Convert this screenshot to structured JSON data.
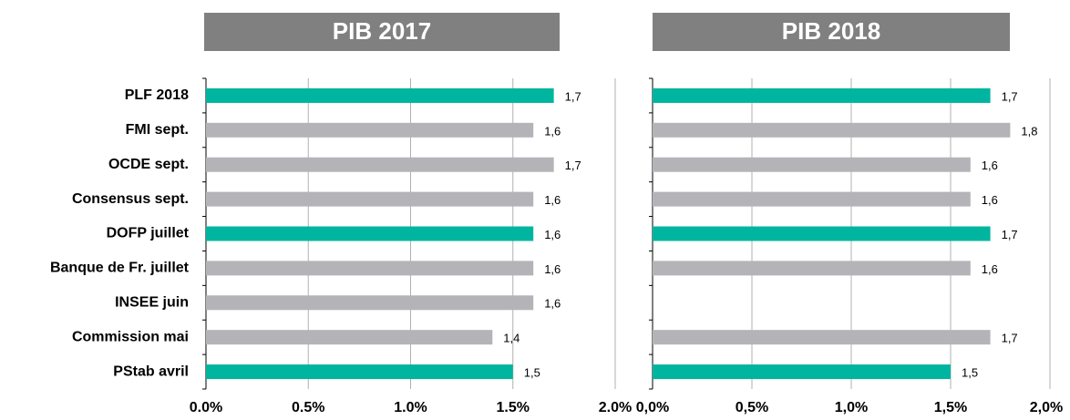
{
  "chart_data": [
    {
      "type": "bar",
      "orientation": "horizontal",
      "title": "PIB 2017",
      "categories": [
        "PLF 2018",
        "FMI sept.",
        "OCDE sept.",
        "Consensus sept.",
        "DOFP juillet",
        "Banque de Fr. juillet",
        "INSEE juin",
        "Commission mai",
        "PStab avril"
      ],
      "values": [
        1.7,
        1.6,
        1.7,
        1.6,
        1.6,
        1.6,
        1.6,
        1.4,
        1.5
      ],
      "value_labels": [
        "1,7",
        "1,6",
        "1,7",
        "1,6",
        "1,6",
        "1,6",
        "1,6",
        "1,4",
        "1,5"
      ],
      "colors": [
        "#00b5a0",
        "#b4b4b8",
        "#b4b4b8",
        "#b4b4b8",
        "#00b5a0",
        "#b4b4b8",
        "#b4b4b8",
        "#b4b4b8",
        "#00b5a0"
      ],
      "xlim": [
        0,
        2
      ],
      "xticks": [
        {
          "value": 0,
          "label": "0.0%"
        },
        {
          "value": 0.5,
          "label": "0.5%"
        },
        {
          "value": 1,
          "label": "1.0%"
        },
        {
          "value": 1.5,
          "label": "1.5%"
        },
        {
          "value": 2,
          "label": "2.0%"
        }
      ],
      "grid": true
    },
    {
      "type": "bar",
      "orientation": "horizontal",
      "title": "PIB 2018",
      "values": [
        1.7,
        1.8,
        1.6,
        1.6,
        1.7,
        1.6,
        null,
        1.7,
        1.5
      ],
      "value_labels": [
        "1,7",
        "1,8",
        "1,6",
        "1,6",
        "1,7",
        "1,6",
        null,
        "1,7",
        "1,5"
      ],
      "colors": [
        "#00b5a0",
        "#b4b4b8",
        "#b4b4b8",
        "#b4b4b8",
        "#00b5a0",
        "#b4b4b8",
        "#b4b4b8",
        "#b4b4b8",
        "#00b5a0"
      ],
      "xlim": [
        0,
        2
      ],
      "xticks": [
        {
          "value": 0,
          "label": "0,0%"
        },
        {
          "value": 0.5,
          "label": "0,5%"
        },
        {
          "value": 1,
          "label": "1,0%"
        },
        {
          "value": 1.5,
          "label": "1,5%"
        },
        {
          "value": 2,
          "label": "2,0%"
        }
      ],
      "grid": true
    }
  ]
}
